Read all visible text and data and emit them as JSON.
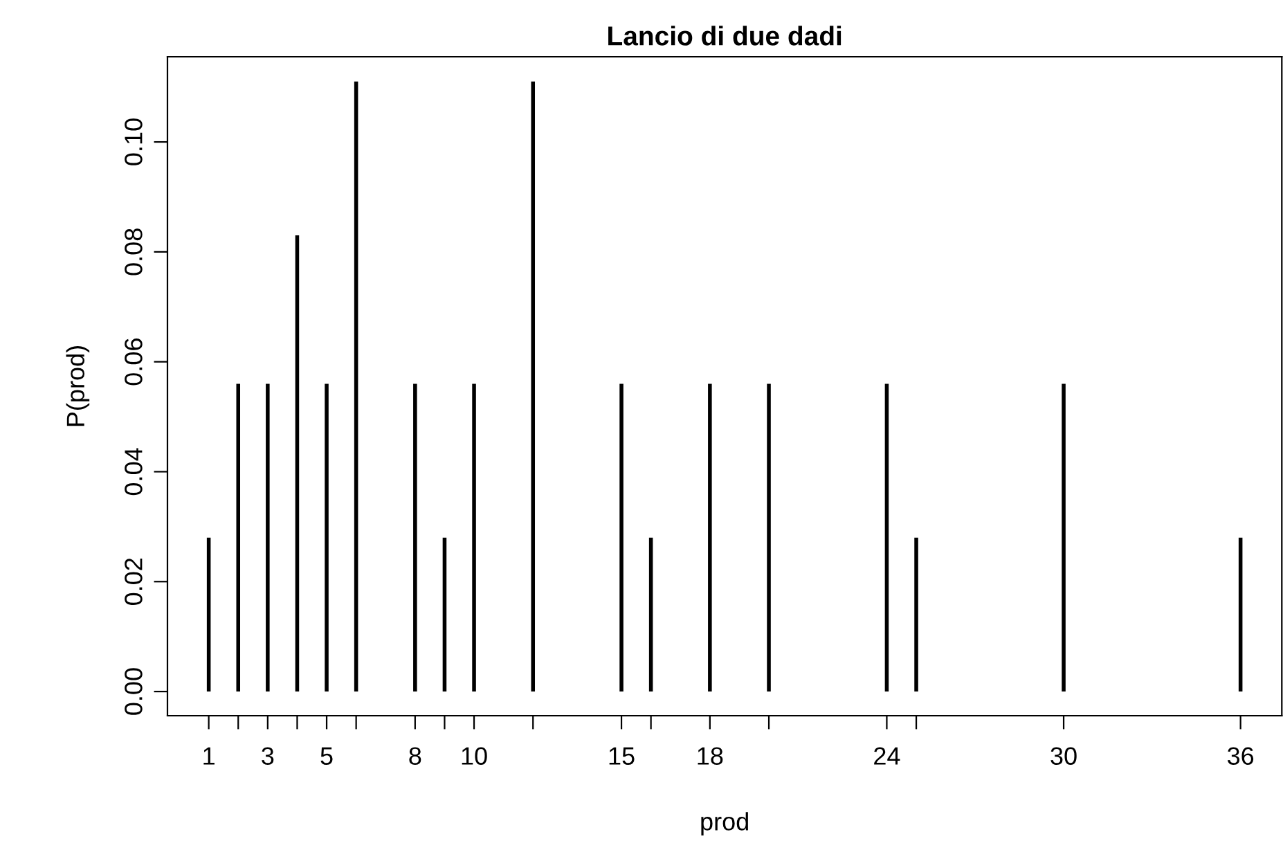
{
  "chart_data": {
    "type": "bar",
    "title": "Lancio di due dadi",
    "xlabel": "prod",
    "ylabel": "P(prod)",
    "x": [
      1,
      2,
      3,
      4,
      5,
      6,
      8,
      9,
      10,
      12,
      15,
      16,
      18,
      20,
      24,
      25,
      30,
      36
    ],
    "values": [
      0.028,
      0.056,
      0.056,
      0.083,
      0.056,
      0.111,
      0.056,
      0.028,
      0.056,
      0.111,
      0.056,
      0.028,
      0.056,
      0.056,
      0.056,
      0.028,
      0.056,
      0.028
    ],
    "color": "#000000",
    "grid": false,
    "legend": false,
    "xlim": [
      -0.4,
      37.4
    ],
    "ylim": [
      -0.0044,
      0.1155
    ],
    "xticks": [
      1,
      {
        "value": 2,
        "label": null
      },
      3,
      {
        "value": 4,
        "label": null
      },
      5,
      {
        "value": 6,
        "label": null
      },
      8,
      {
        "value": 9,
        "label": null
      },
      10,
      {
        "value": 12,
        "label": null
      },
      15,
      {
        "value": 16,
        "label": null
      },
      18,
      {
        "value": 20,
        "label": null
      },
      24,
      {
        "value": 25,
        "label": null
      },
      30,
      36
    ],
    "yticks": [
      {
        "value": 0,
        "label": "0.00"
      },
      {
        "value": 0.02,
        "label": "0.02"
      },
      {
        "value": 0.04,
        "label": "0.04"
      },
      {
        "value": 0.06,
        "label": "0.06"
      },
      {
        "value": 0.08,
        "label": "0.08"
      },
      {
        "value": 0.1,
        "label": "0.10"
      }
    ]
  }
}
